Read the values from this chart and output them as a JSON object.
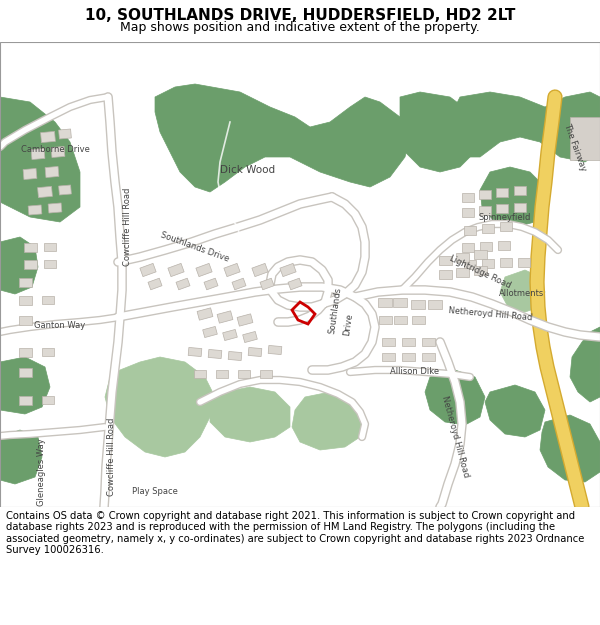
{
  "title": "10, SOUTHLANDS DRIVE, HUDDERSFIELD, HD2 2LT",
  "subtitle": "Map shows position and indicative extent of the property.",
  "footer": "Contains OS data © Crown copyright and database right 2021. This information is subject to Crown copyright and database rights 2023 and is reproduced with the permission of HM Land Registry. The polygons (including the associated geometry, namely x, y co-ordinates) are subject to Crown copyright and database rights 2023 Ordnance Survey 100026316.",
  "bg_color": "#f0ede8",
  "road_color": "#ffffff",
  "green_dark": "#6b9e6b",
  "green_light": "#a8c8a0",
  "building_fill": "#ddd9d3",
  "building_edge": "#b8b2aa",
  "road_edge": "#c8c4be",
  "yellow_road": "#f0d060",
  "yellow_road_edge": "#d4aa30",
  "red_polygon": "#cc0000",
  "title_fontsize": 11,
  "subtitle_fontsize": 9,
  "footer_fontsize": 7.2,
  "label_fontsize": 6.0,
  "label_color": "#444444"
}
